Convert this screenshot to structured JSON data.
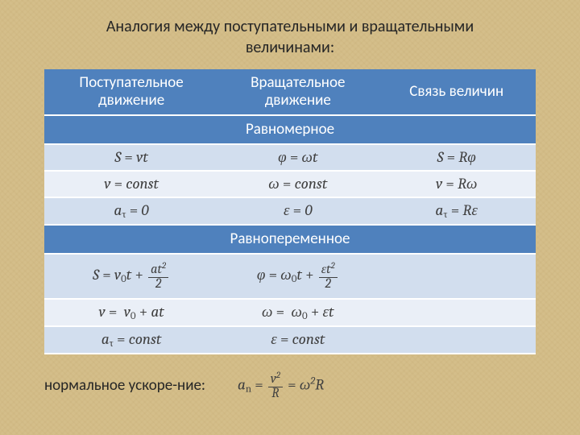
{
  "title_line1": "Аналогия между поступательными и вращательными",
  "title_line2": "величинами:",
  "colors": {
    "background": "#d4be8a",
    "header_bg": "#4f81bd",
    "header_text": "#ffffff",
    "band1": "#d2deee",
    "band2": "#eaeff7",
    "row_border": "#ffffff",
    "formula_text": "#404040"
  },
  "fonts": {
    "ui": "Calibri",
    "math": "Cambria Math",
    "title_size_pt": 20,
    "formula_size_pt": 19
  },
  "table": {
    "headers": {
      "col1_line1": "Поступательное",
      "col1_line2": "движение",
      "col2_line1": "Вращательное",
      "col2_line2": "движение",
      "col3": "Связь величин"
    },
    "section1": "Равномерное",
    "rows1": [
      {
        "c1": "S = vt",
        "c2": "φ = ωt",
        "c3": "S = Rφ"
      },
      {
        "c1": "v = const",
        "c2": "ω = const",
        "c3": "v = Rω"
      },
      {
        "c1": "a_τ = 0",
        "c2": "ε = 0",
        "c3": "a_τ = Rε"
      }
    ],
    "section2": "Равнопеременное",
    "rows2": [
      {
        "c1": "S = v₀t + at²/2",
        "c2": "φ = ω₀t + εt²/2",
        "c3": ""
      },
      {
        "c1": "v = v₀ + at",
        "c2": "ω = ω₀ + εt",
        "c3": ""
      },
      {
        "c1": "a_τ = const",
        "c2": "ε = const",
        "c3": ""
      }
    ]
  },
  "bottom": {
    "label": "нормальное ускоре-ние:",
    "formula": "a_n = v²/R = ω²R"
  }
}
